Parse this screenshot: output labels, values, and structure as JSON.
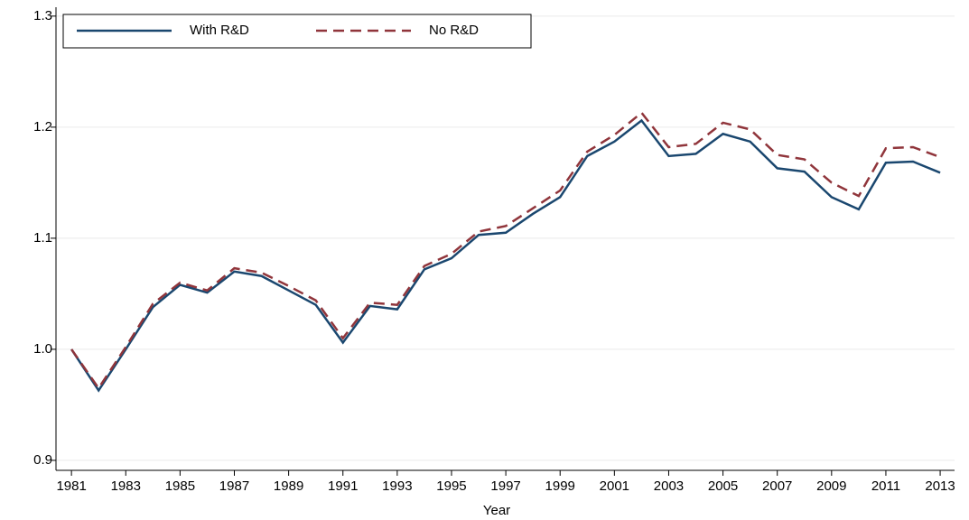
{
  "chart_data": {
    "type": "line",
    "x_label": "Year",
    "x": [
      1981,
      1982,
      1983,
      1984,
      1985,
      1986,
      1987,
      1988,
      1989,
      1990,
      1991,
      1992,
      1993,
      1994,
      1995,
      1996,
      1997,
      1998,
      1999,
      2000,
      2001,
      2002,
      2003,
      2004,
      2005,
      2006,
      2007,
      2008,
      2009,
      2010,
      2011,
      2012,
      2013
    ],
    "series": [
      {
        "name": "With R&D",
        "color": "#1a476f",
        "dash": false,
        "values": [
          1.0,
          0.963,
          1.0,
          1.038,
          1.058,
          1.051,
          1.07,
          1.066,
          1.053,
          1.04,
          1.006,
          1.039,
          1.036,
          1.072,
          1.082,
          1.103,
          1.105,
          1.122,
          1.137,
          1.174,
          1.187,
          1.206,
          1.174,
          1.176,
          1.194,
          1.187,
          1.163,
          1.16,
          1.137,
          1.126,
          1.168,
          1.169,
          1.159
        ]
      },
      {
        "name": "No R&D",
        "color": "#90353b",
        "dash": true,
        "values": [
          1.0,
          0.965,
          1.002,
          1.041,
          1.06,
          1.053,
          1.073,
          1.069,
          1.057,
          1.044,
          1.01,
          1.042,
          1.04,
          1.075,
          1.086,
          1.106,
          1.111,
          1.127,
          1.143,
          1.178,
          1.193,
          1.213,
          1.182,
          1.185,
          1.204,
          1.198,
          1.175,
          1.171,
          1.15,
          1.138,
          1.181,
          1.182,
          1.173
        ]
      }
    ],
    "xlim": [
      1980.43,
      2013.53
    ],
    "xticks": [
      1981,
      1983,
      1985,
      1987,
      1989,
      1991,
      1993,
      1995,
      1997,
      1999,
      2001,
      2003,
      2005,
      2007,
      2009,
      2011,
      2013
    ],
    "ylim": [
      0.891,
      1.308
    ],
    "yticks": [
      0.9,
      {
        "value": 1,
        "label": "1.0"
      },
      1.1,
      1.2,
      1.3
    ],
    "grid": true,
    "legend": "top-left"
  }
}
